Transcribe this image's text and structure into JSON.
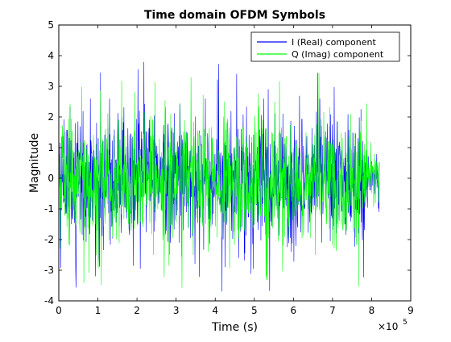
{
  "chart_data": {
    "type": "line",
    "title": "Time domain OFDM Symbols",
    "xlabel": "Time (s)",
    "ylabel": "Magnitude",
    "x_exponent_label": "×10",
    "x_exponent_power": "5",
    "xlim": [
      0,
      9
    ],
    "ylim": [
      -4,
      5
    ],
    "x_ticks": [
      "0",
      "1",
      "2",
      "3",
      "4",
      "5",
      "6",
      "7",
      "8",
      "9"
    ],
    "y_ticks": [
      "-4",
      "-3",
      "-2",
      "-1",
      "0",
      "1",
      "2",
      "3",
      "4",
      "5"
    ],
    "grid": false,
    "legend_position": "top-right",
    "series": [
      {
        "name": "I (Real) component",
        "color": "#0000ff",
        "envelope": [
          {
            "x_from": 0,
            "x_to": 7.9,
            "upper": 2.6,
            "lower": -2.6,
            "peak_max": 3.95,
            "peak_min": -3.75
          },
          {
            "x_from": 7.9,
            "x_to": 8.2,
            "upper": 1.1,
            "lower": -1.1,
            "peak_max": 1.2,
            "peak_min": -1.2
          }
        ]
      },
      {
        "name": "Q (Imag) component",
        "color": "#00ff00",
        "envelope": [
          {
            "x_from": 0,
            "x_to": 7.9,
            "upper": 2.5,
            "lower": -2.5,
            "peak_max": 3.5,
            "peak_min": -3.7
          },
          {
            "x_from": 7.9,
            "x_to": 8.2,
            "upper": 1.1,
            "lower": -1.1,
            "peak_max": 1.2,
            "peak_min": -1.2
          }
        ]
      }
    ]
  }
}
